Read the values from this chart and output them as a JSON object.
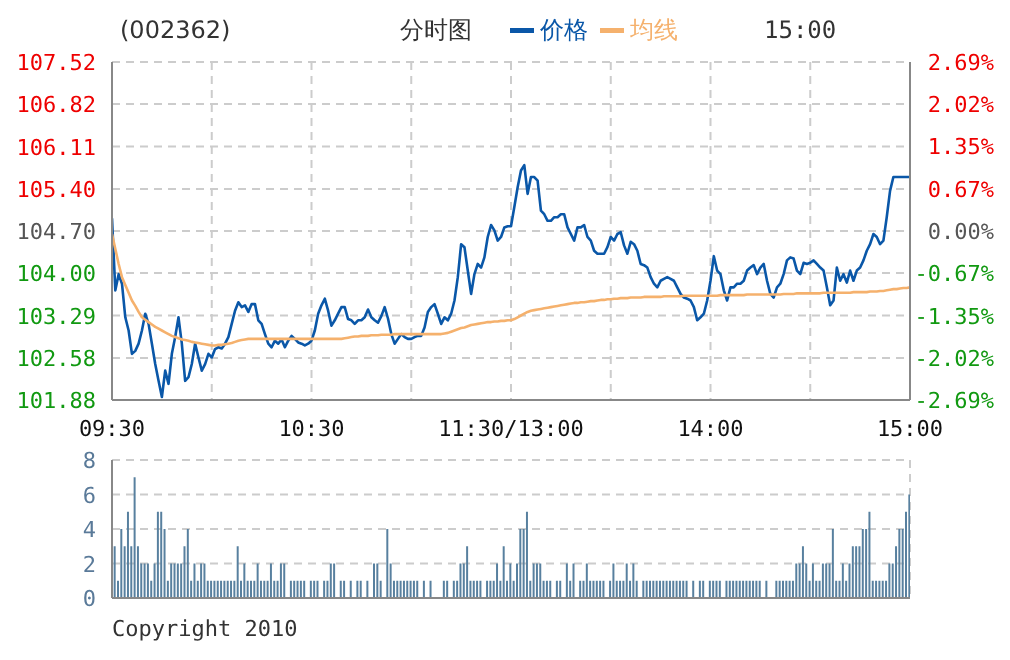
{
  "chart_data": [
    {
      "type": "line",
      "title": "(002362)",
      "subtitle": "分时图",
      "annotations": [
        "15:00"
      ],
      "legend": "top",
      "grid": true,
      "categories": [
        "09:30",
        null,
        null,
        null,
        null,
        null,
        null,
        null,
        null,
        null,
        null,
        null,
        null,
        null,
        null,
        null,
        null,
        null,
        null,
        null,
        null,
        null,
        null,
        null,
        null,
        null,
        null,
        null,
        null,
        null,
        null,
        null,
        null,
        null,
        null,
        null,
        null,
        null,
        null,
        null,
        null,
        null,
        null,
        null,
        null,
        null,
        null,
        null,
        null,
        null,
        null,
        null,
        null,
        null,
        null,
        null,
        null,
        null,
        null,
        null,
        "10:30",
        null,
        null,
        null,
        null,
        null,
        null,
        null,
        null,
        null,
        null,
        null,
        null,
        null,
        null,
        null,
        null,
        null,
        null,
        null,
        null,
        null,
        null,
        null,
        null,
        null,
        null,
        null,
        null,
        null,
        null,
        null,
        null,
        null,
        null,
        null,
        null,
        null,
        null,
        null,
        null,
        null,
        null,
        null,
        null,
        null,
        null,
        null,
        null,
        null,
        null,
        null,
        null,
        null,
        null,
        null,
        null,
        null,
        null,
        null,
        "11:30/13:00",
        null,
        null,
        null,
        null,
        null,
        null,
        null,
        null,
        null,
        null,
        null,
        null,
        null,
        null,
        null,
        null,
        null,
        null,
        null,
        null,
        null,
        null,
        null,
        null,
        null,
        null,
        null,
        null,
        null,
        null,
        null,
        null,
        null,
        null,
        null,
        null,
        null,
        null,
        null,
        null,
        null,
        null,
        null,
        null,
        null,
        null,
        null,
        null,
        null,
        null,
        null,
        null,
        null,
        null,
        null,
        null,
        null,
        null,
        null,
        "14:00",
        null,
        null,
        null,
        null,
        null,
        null,
        null,
        null,
        null,
        null,
        null,
        null,
        null,
        null,
        null,
        null,
        null,
        null,
        null,
        null,
        null,
        null,
        null,
        null,
        null,
        null,
        null,
        null,
        null,
        null,
        null,
        null,
        null,
        null,
        null,
        null,
        null,
        null,
        null,
        null,
        null,
        null,
        null,
        null,
        null,
        null,
        null,
        null,
        null,
        null,
        null,
        null,
        null,
        null,
        null,
        null,
        null,
        null,
        null,
        "15:00"
      ],
      "ylim": [
        101.88,
        107.52
      ],
      "yticks": [
        101.88,
        102.58,
        103.29,
        {
          "value": 104.0,
          "label": "104.00"
        },
        {
          "value": 104.7,
          "label": "104.70"
        },
        {
          "value": 105.4,
          "label": "105.40"
        },
        106.11,
        106.82,
        107.52
      ],
      "y2lim": [
        -2.69,
        2.69
      ],
      "y2ticks": [
        {
          "value": -2.69,
          "label": "-2.69%"
        },
        {
          "value": -2.02,
          "label": "-2.02%"
        },
        {
          "value": -1.35,
          "label": "-1.35%"
        },
        {
          "value": -0.67,
          "label": "-0.67%"
        },
        {
          "value": 0,
          "label": "0.00%"
        },
        {
          "value": 0.67,
          "label": "0.67%"
        },
        {
          "value": 1.35,
          "label": "1.35%"
        },
        {
          "value": 2.02,
          "label": "2.02%"
        },
        {
          "value": 2.69,
          "label": "2.69%"
        }
      ],
      "series": [
        {
          "name": "价格",
          "color": "#0a57a8",
          "values": [
            104.91,
            103.71,
            103.98,
            103.82,
            103.26,
            103.04,
            102.65,
            102.7,
            102.82,
            103.04,
            103.32,
            103.15,
            102.82,
            102.48,
            102.2,
            101.93,
            102.37,
            102.15,
            102.65,
            102.93,
            103.26,
            102.82,
            102.2,
            102.26,
            102.48,
            102.82,
            102.59,
            102.37,
            102.48,
            102.65,
            102.59,
            102.73,
            102.76,
            102.74,
            102.82,
            102.93,
            103.15,
            103.37,
            103.51,
            103.43,
            103.46,
            103.35,
            103.48,
            103.48,
            103.21,
            103.15,
            102.98,
            102.82,
            102.76,
            102.87,
            102.82,
            102.89,
            102.76,
            102.87,
            102.95,
            102.9,
            102.84,
            102.82,
            102.79,
            102.82,
            102.87,
            103.04,
            103.32,
            103.46,
            103.57,
            103.37,
            103.12,
            103.21,
            103.32,
            103.43,
            103.43,
            103.23,
            103.21,
            103.15,
            103.21,
            103.21,
            103.26,
            103.39,
            103.26,
            103.21,
            103.17,
            103.28,
            103.43,
            103.24,
            102.98,
            102.82,
            102.9,
            102.98,
            102.93,
            102.9,
            102.9,
            102.93,
            102.95,
            102.95,
            103.09,
            103.35,
            103.43,
            103.48,
            103.32,
            103.15,
            103.26,
            103.21,
            103.32,
            103.54,
            103.93,
            104.48,
            104.43,
            104.04,
            103.65,
            103.98,
            104.15,
            104.09,
            104.26,
            104.6,
            104.8,
            104.71,
            104.54,
            104.6,
            104.76,
            104.78,
            104.78,
            105.1,
            105.43,
            105.71,
            105.8,
            105.32,
            105.6,
            105.6,
            105.54,
            105.04,
            104.98,
            104.87,
            104.87,
            104.93,
            104.93,
            104.98,
            104.98,
            104.76,
            104.65,
            104.54,
            104.76,
            104.76,
            104.8,
            104.6,
            104.54,
            104.37,
            104.32,
            104.32,
            104.32,
            104.43,
            104.6,
            104.54,
            104.65,
            104.68,
            104.46,
            104.32,
            104.52,
            104.48,
            104.37,
            104.15,
            104.13,
            104.09,
            103.93,
            103.82,
            103.76,
            103.87,
            103.9,
            103.93,
            103.9,
            103.87,
            103.76,
            103.65,
            103.59,
            103.57,
            103.54,
            103.43,
            103.21,
            103.26,
            103.32,
            103.54,
            103.87,
            104.28,
            104.04,
            103.98,
            103.71,
            103.54,
            103.76,
            103.76,
            103.82,
            103.82,
            103.87,
            104.04,
            104.09,
            104.13,
            103.98,
            104.09,
            104.15,
            103.87,
            103.65,
            103.59,
            103.76,
            103.82,
            103.98,
            104.21,
            104.26,
            104.24,
            104.04,
            103.98,
            104.17,
            104.15,
            104.17,
            104.21,
            104.15,
            104.09,
            104.04,
            103.76,
            103.46,
            103.54,
            104.09,
            103.87,
            103.98,
            103.84,
            104.04,
            103.87,
            104.04,
            104.09,
            104.21,
            104.37,
            104.48,
            104.65,
            104.6,
            104.48,
            104.54,
            104.93,
            105.37,
            105.6,
            105.6,
            105.6,
            105.6,
            105.6,
            105.6
          ]
        },
        {
          "name": "均线",
          "color": "#f5b16d",
          "values": [
            104.65,
            104.4,
            104.15,
            103.93,
            103.8,
            103.67,
            103.54,
            103.45,
            103.35,
            103.26,
            103.22,
            103.18,
            103.14,
            103.1,
            103.07,
            103.04,
            103.01,
            102.98,
            102.95,
            102.93,
            102.91,
            102.89,
            102.88,
            102.87,
            102.85,
            102.84,
            102.83,
            102.82,
            102.81,
            102.8,
            102.79,
            102.79,
            102.8,
            102.8,
            102.81,
            102.82,
            102.83,
            102.85,
            102.87,
            102.88,
            102.89,
            102.9,
            102.9,
            102.9,
            102.9,
            102.9,
            102.9,
            102.9,
            102.9,
            102.9,
            102.9,
            102.9,
            102.9,
            102.9,
            102.9,
            102.9,
            102.9,
            102.9,
            102.9,
            102.9,
            102.9,
            102.9,
            102.9,
            102.9,
            102.9,
            102.9,
            102.9,
            102.9,
            102.9,
            102.9,
            102.91,
            102.92,
            102.93,
            102.94,
            102.94,
            102.95,
            102.95,
            102.95,
            102.96,
            102.96,
            102.96,
            102.97,
            102.97,
            102.97,
            102.97,
            102.98,
            102.98,
            102.98,
            102.98,
            102.98,
            102.98,
            102.98,
            102.98,
            102.98,
            102.98,
            102.98,
            102.98,
            102.98,
            102.98,
            102.98,
            102.99,
            103.0,
            103.02,
            103.04,
            103.06,
            103.08,
            103.09,
            103.11,
            103.13,
            103.14,
            103.15,
            103.16,
            103.17,
            103.18,
            103.18,
            103.19,
            103.19,
            103.2,
            103.2,
            103.21,
            103.21,
            103.23,
            103.26,
            103.29,
            103.32,
            103.35,
            103.37,
            103.38,
            103.39,
            103.4,
            103.41,
            103.42,
            103.43,
            103.44,
            103.45,
            103.46,
            103.47,
            103.48,
            103.49,
            103.5,
            103.5,
            103.51,
            103.51,
            103.52,
            103.53,
            103.53,
            103.54,
            103.55,
            103.55,
            103.56,
            103.56,
            103.57,
            103.57,
            103.58,
            103.58,
            103.58,
            103.59,
            103.59,
            103.59,
            103.59,
            103.6,
            103.6,
            103.6,
            103.6,
            103.6,
            103.6,
            103.61,
            103.61,
            103.61,
            103.61,
            103.61,
            103.61,
            103.62,
            103.62,
            103.62,
            103.62,
            103.62,
            103.62,
            103.62,
            103.62,
            103.62,
            103.62,
            103.62,
            103.63,
            103.63,
            103.63,
            103.63,
            103.63,
            103.63,
            103.63,
            103.63,
            103.64,
            103.64,
            103.64,
            103.64,
            103.64,
            103.64,
            103.64,
            103.64,
            103.64,
            103.64,
            103.64,
            103.65,
            103.65,
            103.65,
            103.65,
            103.66,
            103.66,
            103.66,
            103.66,
            103.66,
            103.66,
            103.66,
            103.66,
            103.67,
            103.67,
            103.67,
            103.67,
            103.67,
            103.67,
            103.67,
            103.67,
            103.67,
            103.68,
            103.68,
            103.68,
            103.68,
            103.68,
            103.69,
            103.69,
            103.69,
            103.7,
            103.7,
            103.71,
            103.72,
            103.73,
            103.73,
            103.74,
            103.75,
            103.75,
            103.76
          ]
        }
      ]
    },
    {
      "type": "bar",
      "color": "#58809f",
      "grid": true,
      "tick_labels": "y",
      "annotations": [
        "Copyright 2010"
      ],
      "categories": [
        null,
        null,
        null,
        null,
        null,
        null,
        null,
        null,
        null,
        null,
        null,
        null,
        null,
        null,
        null,
        null,
        null,
        null,
        null,
        null,
        null,
        null,
        null,
        null,
        null,
        null,
        null,
        null,
        null,
        null,
        null,
        null,
        null,
        null,
        null,
        null,
        null,
        null,
        null,
        null,
        null,
        null,
        null,
        null,
        null,
        null,
        null,
        null,
        null,
        null,
        null,
        null,
        null,
        null,
        null,
        null,
        null,
        null,
        null,
        null,
        null,
        null,
        null,
        null,
        null,
        null,
        null,
        null,
        null,
        null,
        null,
        null,
        null,
        null,
        null,
        null,
        null,
        null,
        null,
        null,
        null,
        null,
        null,
        null,
        null,
        null,
        null,
        null,
        null,
        null,
        null,
        null,
        null,
        null,
        null,
        null,
        null,
        null,
        null,
        null,
        null,
        null,
        null,
        null,
        null,
        null,
        null,
        null,
        null,
        null,
        null,
        null,
        null,
        null,
        null,
        null,
        null,
        null,
        null,
        null,
        null,
        null,
        null,
        null,
        null,
        null,
        null,
        null,
        null,
        null,
        null,
        null,
        null,
        null,
        null,
        null,
        null,
        null,
        null,
        null,
        null,
        null,
        null,
        null,
        null,
        null,
        null,
        null,
        null,
        null,
        null,
        null,
        null,
        null,
        null,
        null,
        null,
        null,
        null,
        null,
        null,
        null,
        null,
        null,
        null,
        null,
        null,
        null,
        null,
        null,
        null,
        null,
        null,
        null,
        null,
        null,
        null,
        null,
        null,
        null,
        null,
        null,
        null,
        null,
        null,
        null,
        null,
        null,
        null,
        null,
        null,
        null,
        null,
        null,
        null,
        null,
        null,
        null,
        null,
        null,
        null,
        null,
        null,
        null,
        null,
        null,
        null,
        null,
        null,
        null,
        null,
        null,
        null,
        null,
        null,
        null,
        null,
        null,
        null,
        null,
        null,
        null,
        null,
        null,
        null,
        null,
        null,
        null,
        null,
        null,
        null,
        null,
        null,
        null,
        null,
        null,
        null,
        null,
        null,
        null,
        null
      ],
      "ylim": [
        0,
        8
      ],
      "yticks": [
        0,
        2,
        4,
        6,
        8
      ],
      "values": [
        null,
        3,
        1,
        4,
        3,
        5,
        3,
        7,
        3,
        2,
        2,
        2,
        1,
        2,
        5,
        5,
        4,
        1,
        2,
        2,
        2,
        2,
        3,
        4,
        1,
        2,
        1,
        2,
        2,
        1,
        1,
        1,
        1,
        1,
        1,
        1,
        1,
        1,
        3,
        1,
        2,
        1,
        1,
        1,
        2,
        1,
        1,
        1,
        2,
        1,
        1,
        2,
        2,
        0,
        1,
        1,
        1,
        1,
        1,
        0,
        1,
        1,
        1,
        0,
        1,
        1,
        2,
        2,
        0,
        1,
        1,
        0,
        1,
        0,
        1,
        1,
        0,
        1,
        0,
        2,
        2,
        1,
        0,
        4,
        2,
        1,
        1,
        1,
        1,
        1,
        1,
        1,
        1,
        0,
        1,
        0,
        1,
        0,
        0,
        0,
        1,
        1,
        0,
        1,
        1,
        2,
        2,
        3,
        1,
        1,
        1,
        1,
        0,
        1,
        1,
        1,
        2,
        1,
        3,
        1,
        2,
        1,
        2,
        4,
        4,
        5,
        1,
        2,
        2,
        2,
        1,
        1,
        1,
        0,
        1,
        1,
        0,
        2,
        1,
        2,
        0,
        1,
        1,
        2,
        1,
        1,
        1,
        1,
        1,
        0,
        1,
        2,
        1,
        1,
        1,
        2,
        1,
        2,
        1,
        0,
        1,
        1,
        1,
        1,
        1,
        1,
        1,
        1,
        1,
        1,
        1,
        1,
        1,
        1,
        0,
        1,
        0,
        1,
        1,
        0,
        1,
        1,
        1,
        1,
        0,
        1,
        1,
        1,
        1,
        1,
        1,
        1,
        1,
        1,
        1,
        1,
        0,
        1,
        0,
        0,
        1,
        1,
        1,
        1,
        1,
        1,
        2,
        2,
        3,
        2,
        1,
        2,
        1,
        1,
        2,
        2,
        2,
        4,
        1,
        1,
        2,
        1,
        2,
        3,
        3,
        3,
        4,
        4,
        5,
        1,
        1,
        1,
        1,
        1,
        2,
        2,
        3,
        4,
        4,
        5,
        6
      ]
    }
  ]
}
